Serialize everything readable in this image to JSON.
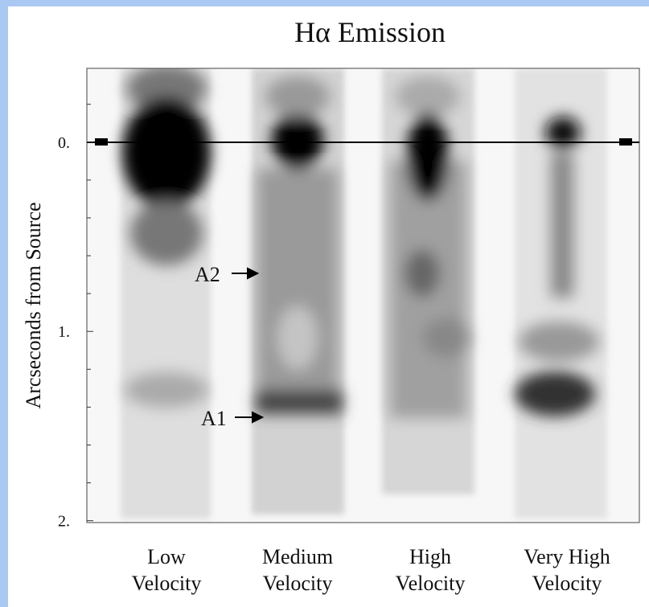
{
  "title": "Hα Emission",
  "yaxis": {
    "label": "Arcseconds from Source",
    "range": [
      -0.39,
      2.01
    ],
    "ticks": [
      {
        "value": 0,
        "label": "0."
      },
      {
        "value": 1,
        "label": "1."
      },
      {
        "value": 2,
        "label": "2."
      }
    ],
    "minor_ticks": [
      -0.2,
      0.2,
      0.4,
      0.6,
      0.8,
      1.2,
      1.4,
      1.6,
      1.8
    ]
  },
  "panels": [
    [
      "Low",
      "Velocity"
    ],
    [
      "Medium",
      "Velocity"
    ],
    [
      "High",
      "Velocity"
    ],
    [
      "Very High",
      "Velocity"
    ]
  ],
  "annotations": [
    "A2",
    "A1"
  ]
}
